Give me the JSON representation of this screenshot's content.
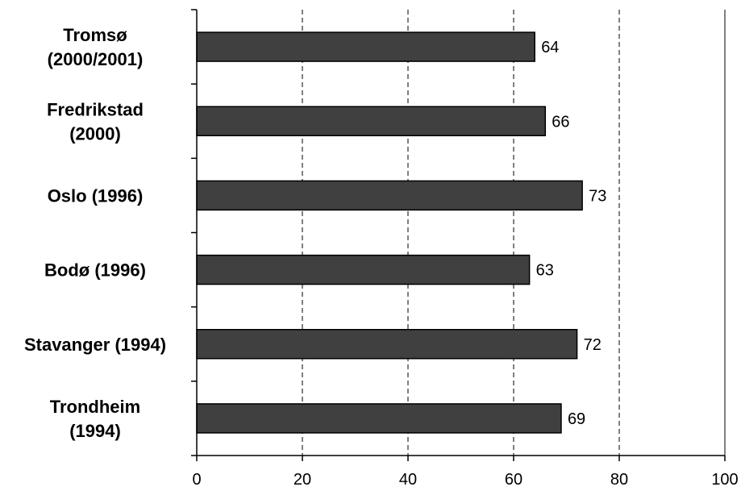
{
  "chart_data": {
    "type": "bar",
    "orientation": "horizontal",
    "categories": [
      [
        "Tromsø",
        "(2000/2001)"
      ],
      [
        "Fredrikstad",
        "(2000)"
      ],
      [
        "Oslo (1996)"
      ],
      [
        "Bodø (1996)"
      ],
      [
        "Stavanger (1994)"
      ],
      [
        "Trondheim",
        "(1994)"
      ]
    ],
    "values": [
      64,
      66,
      73,
      63,
      72,
      69
    ],
    "data_labels": [
      "64",
      "66",
      "73",
      "63",
      "72",
      "69"
    ],
    "xlim": [
      0,
      100
    ],
    "x_ticks": [
      0,
      20,
      40,
      60,
      80,
      100
    ],
    "x_tick_labels": [
      "0",
      "20",
      "40",
      "60",
      "80",
      "100"
    ],
    "grid": "vertical dashed",
    "colors": {
      "bar_fill": "#404040",
      "bar_stroke": "#000000",
      "grid": "#000000"
    },
    "title": "",
    "xlabel": "",
    "ylabel": ""
  }
}
